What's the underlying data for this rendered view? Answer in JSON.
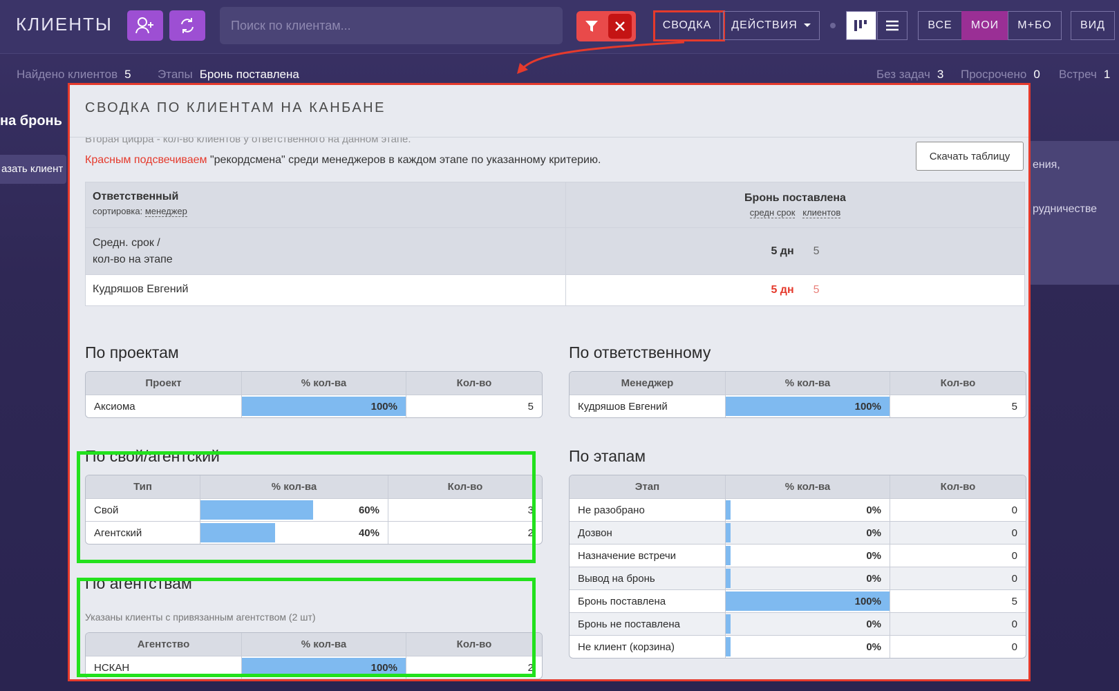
{
  "topbar": {
    "title": "КЛИЕНТЫ",
    "search_placeholder": "Поиск по клиентам...",
    "summary_btn": "СВОДКА",
    "actions_btn": "ДЕЙСТВИЯ",
    "filter_all": "ВСЕ",
    "filter_mine": "МОИ",
    "filter_mbo": "М+БО",
    "view_btn": "ВИД"
  },
  "substatus": {
    "found_label": "Найдено клиентов",
    "found_value": "5",
    "stages_label": "Этапы",
    "stages_value": "Бронь поставлена",
    "no_tasks_label": "Без задач",
    "no_tasks_value": "3",
    "overdue_label": "Просрочено",
    "overdue_value": "0",
    "meetings_label": "Встреч",
    "meetings_value": "1"
  },
  "background": {
    "column_title": "на бронь",
    "show_client": "азать клиент",
    "right_text1": "ения,",
    "right_text2": "рудничестве"
  },
  "panel": {
    "title": "СВОДКА ПО КЛИЕНТАМ НА КАНБАНЕ",
    "cut_text": "Вторая цифра - кол-во клиентов у ответственного на данном этапе.",
    "note_red": "Красным подсвечиваем",
    "note_rest": " \"рекордсмена\" среди менеджеров в каждом этапе по указанному критерию.",
    "download_btn": "Скачать таблицу",
    "main_table": {
      "col1_title": "Ответственный",
      "col1_sort_label": "сортировка:",
      "col1_sort_value": "менеджер",
      "col2_title": "Бронь поставлена",
      "col2_sub1": "средн срок",
      "col2_sub2": "клиентов",
      "avg_label_1": "Средн. срок /",
      "avg_label_2": "кол-во на этапе",
      "avg_term": "5 дн",
      "avg_count": "5",
      "user_name": "Кудряшов Евгений",
      "user_term": "5 дн",
      "user_count": "5"
    },
    "by_projects": {
      "title": "По проектам",
      "headers": [
        "Проект",
        "% кол-ва",
        "Кол-во"
      ],
      "rows": [
        {
          "name": "Аксиома",
          "pct": "100%",
          "pct_value": 100,
          "count": "5"
        }
      ]
    },
    "by_manager": {
      "title": "По ответственному",
      "headers": [
        "Менеджер",
        "% кол-ва",
        "Кол-во"
      ],
      "rows": [
        {
          "name": "Кудряшов Евгений",
          "pct": "100%",
          "pct_value": 100,
          "count": "5"
        }
      ]
    },
    "by_type": {
      "title": "По свой/агентский",
      "headers": [
        "Тип",
        "% кол-ва",
        "Кол-во"
      ],
      "rows": [
        {
          "name": "Свой",
          "pct": "60%",
          "pct_value": 60,
          "count": "3"
        },
        {
          "name": "Агентский",
          "pct": "40%",
          "pct_value": 40,
          "count": "2"
        }
      ]
    },
    "by_stage": {
      "title": "По этапам",
      "headers": [
        "Этап",
        "% кол-ва",
        "Кол-во"
      ],
      "rows": [
        {
          "name": "Не разобрано",
          "pct": "0%",
          "pct_value": 0,
          "count": "0"
        },
        {
          "name": "Дозвон",
          "pct": "0%",
          "pct_value": 0,
          "count": "0"
        },
        {
          "name": "Назначение встречи",
          "pct": "0%",
          "pct_value": 0,
          "count": "0"
        },
        {
          "name": "Вывод на бронь",
          "pct": "0%",
          "pct_value": 0,
          "count": "0"
        },
        {
          "name": "Бронь поставлена",
          "pct": "100%",
          "pct_value": 100,
          "count": "5"
        },
        {
          "name": "Бронь не поставлена",
          "pct": "0%",
          "pct_value": 0,
          "count": "0"
        },
        {
          "name": "Не клиент (корзина)",
          "pct": "0%",
          "pct_value": 0,
          "count": "0"
        }
      ]
    },
    "by_agency": {
      "title": "По агентствам",
      "subtitle": "Указаны клиенты с привязанным агентством (2 шт)",
      "headers": [
        "Агентство",
        "% кол-ва",
        "Кол-во"
      ],
      "rows": [
        {
          "name": "НСКАН",
          "pct": "100%",
          "pct_value": 100,
          "count": "2"
        }
      ]
    }
  },
  "colors": {
    "accent_purple": "#9d4fd3",
    "active_filter": "#9a2f95",
    "highlight_red": "#e53a2c",
    "highlight_green": "#22e11d",
    "bar_blue": "#7fbaf0"
  }
}
